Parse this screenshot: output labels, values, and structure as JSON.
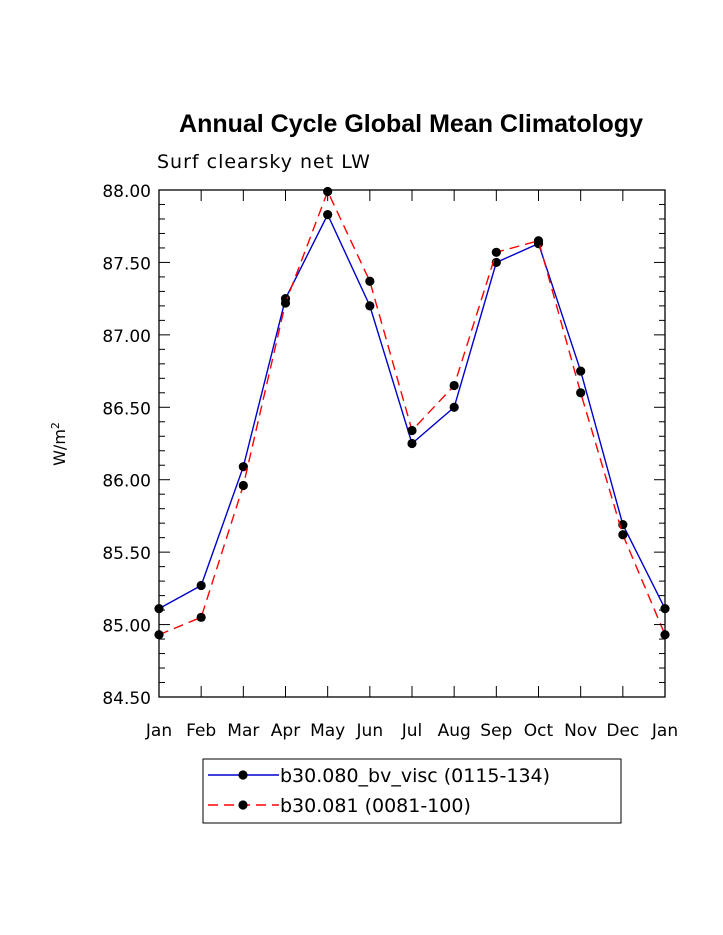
{
  "chart_data": {
    "type": "line",
    "title": "Annual Cycle Global Mean Climatology",
    "subtitle": "Surf clearsky net LW",
    "ylabel": "W/m",
    "ylabel_sup": "2",
    "xlabel": "",
    "categories": [
      "Jan",
      "Feb",
      "Mar",
      "Apr",
      "May",
      "Jun",
      "Jul",
      "Aug",
      "Sep",
      "Oct",
      "Nov",
      "Dec",
      "Jan"
    ],
    "ylim": [
      84.5,
      88.0
    ],
    "yticks": [
      "84.50",
      "85.00",
      "85.50",
      "86.00",
      "86.50",
      "87.00",
      "87.50",
      "88.00"
    ],
    "series": [
      {
        "name": "b30.080_bv_visc (0115-134)",
        "color": "#0000cc",
        "dash": "solid",
        "values": [
          85.11,
          85.27,
          86.09,
          87.25,
          87.83,
          87.2,
          86.25,
          86.5,
          87.5,
          87.63,
          86.75,
          85.69,
          85.11
        ]
      },
      {
        "name": "b30.081 (0081-100)",
        "color": "#ff0000",
        "dash": "dashed",
        "values": [
          84.93,
          85.05,
          85.96,
          87.22,
          87.99,
          87.37,
          86.34,
          86.65,
          87.57,
          87.65,
          86.6,
          85.62,
          84.93
        ]
      }
    ]
  }
}
